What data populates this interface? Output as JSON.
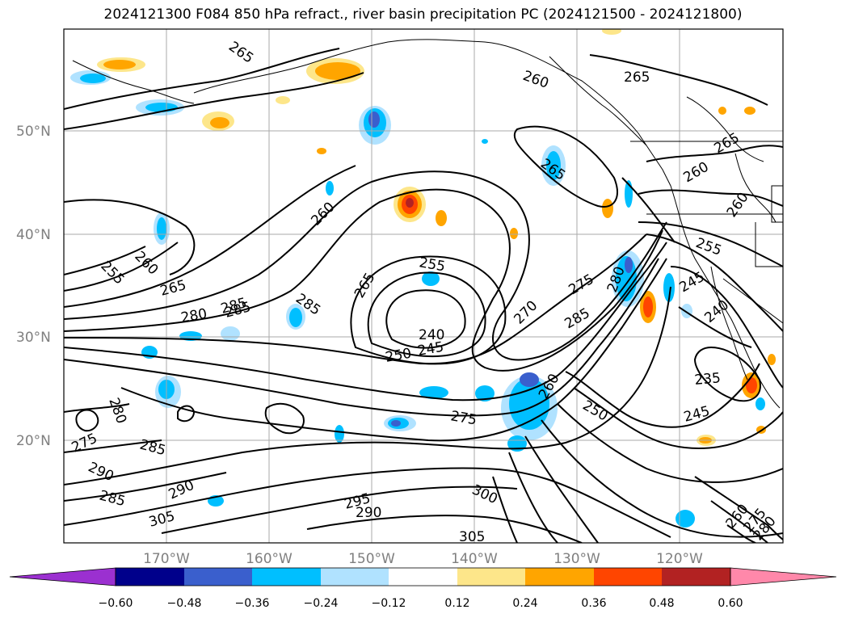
{
  "title": "2024121300 F084 850 hPa refract., river basin precipitation PC (2024121500 - 2024121800)",
  "map": {
    "lat_labels": [
      "50°N",
      "40°N",
      "30°N",
      "20°N"
    ],
    "lon_labels": [
      "170°W",
      "160°W",
      "150°W",
      "140°W",
      "130°W",
      "120°W"
    ],
    "gridlines": true
  },
  "contour_labels": [
    "265",
    "260",
    "265",
    "265",
    "260",
    "265",
    "260",
    "255",
    "260",
    "265",
    "280",
    "285",
    "285",
    "255",
    "265",
    "260",
    "275",
    "280",
    "285",
    "240",
    "245",
    "250",
    "270",
    "285",
    "280",
    "275",
    "285",
    "290",
    "285",
    "290",
    "305",
    "295",
    "290",
    "300",
    "305",
    "255",
    "245",
    "240",
    "235",
    "245",
    "275",
    "260",
    "250",
    "260",
    "275",
    "280"
  ],
  "colorbar": {
    "ticks": [
      "−0.60",
      "−0.48",
      "−0.36",
      "−0.24",
      "−0.12",
      "0.12",
      "0.24",
      "0.36",
      "0.48",
      "0.60"
    ],
    "colors": [
      "#9b30d0",
      "#00008b",
      "#3a5fcd",
      "#00bfff",
      "#b0e2ff",
      "#ffffff",
      "#fde68a",
      "#ffa500",
      "#ff4500",
      "#b22222",
      "#ff88aa"
    ]
  }
}
